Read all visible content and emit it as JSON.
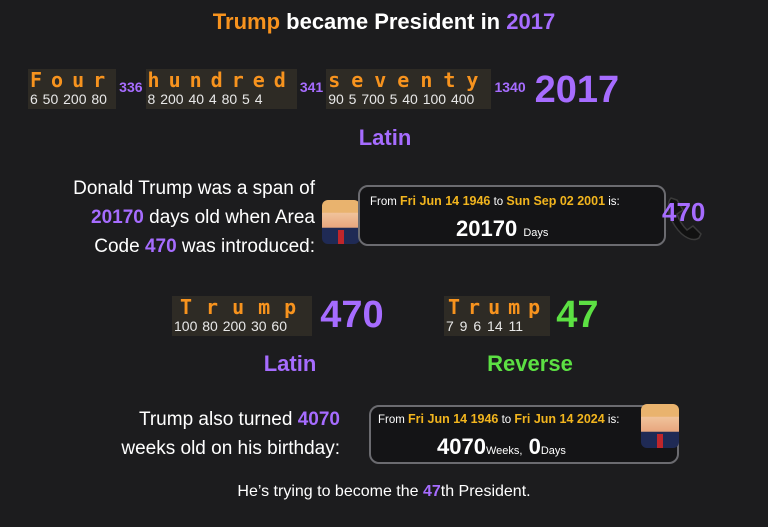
{
  "title": {
    "name": "Trump",
    "middle": " became President in ",
    "year": "2017"
  },
  "cipher_row": {
    "words": [
      {
        "letters": "Four",
        "values": "6 50 200 80",
        "sum": "336"
      },
      {
        "letters": "hundred",
        "values": "8 200 40 4 80 5 4",
        "sum": "341"
      },
      {
        "letters": "seventy",
        "values": "90 5 700 5 40 100 400",
        "sum": "1340"
      }
    ],
    "total": "2017",
    "label": "Latin"
  },
  "span_fact": {
    "line1": "Donald Trump was a span of",
    "days": "20170",
    "line2_rest": " days old when Area",
    "line3_pre": "Code ",
    "code": "470",
    "line3_post": " was introduced:",
    "box": {
      "from_label": "From",
      "from_date": "Fri Jun 14 1946",
      "to_label": "to",
      "to_date": "Sun Sep 02 2001",
      "is_label": "is:",
      "value": "20170",
      "unit": "Days"
    },
    "phone_number": "470"
  },
  "latin_trump": {
    "letters": "Trump",
    "values": "100 80 200 30 60",
    "total": "470",
    "label": "Latin"
  },
  "reverse_trump": {
    "letters": "Trump",
    "values": "7 9 6 14 11",
    "total": "47",
    "label": "Reverse"
  },
  "weeks_fact": {
    "line1_pre": "Trump also turned ",
    "weeks": "4070",
    "line2": "weeks old on his birthday:",
    "box": {
      "from_label": "From",
      "from_date": "Fri Jun 14 1946",
      "to_label": "to",
      "to_date": "Fri Jun 14 2024",
      "is_label": "is:",
      "value": "4070",
      "unit1": "Weeks,",
      "value2": "0",
      "unit2": "Days"
    }
  },
  "footer": {
    "pre": "He’s trying to become the ",
    "num": "47",
    "post": "th President."
  },
  "colors": {
    "background": "#1c1c1e",
    "orange": "#f7931e",
    "purple": "#a66cff",
    "green": "#5ce043",
    "yellow": "#f2b51e"
  }
}
